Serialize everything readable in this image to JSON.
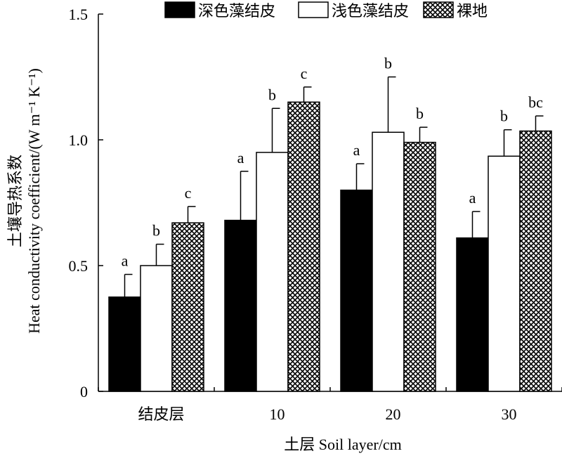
{
  "chart_data": {
    "type": "bar",
    "xlabel": "土层 Soil layer/cm",
    "ylabel_line1": "土壤导热系数",
    "ylabel_line2": "Heat conductivity coefficient/(W m⁻¹ K⁻¹)",
    "ylim": [
      0,
      1.5
    ],
    "yticks": [
      "0",
      "0.5",
      "1.0",
      "1.5"
    ],
    "ytick_values": [
      0,
      0.5,
      1.0,
      1.5
    ],
    "categories": [
      "结皮层",
      "10",
      "20",
      "30"
    ],
    "legend_position": "top",
    "grid": false,
    "series": [
      {
        "name": "深色藻结皮",
        "pattern": "solid-black",
        "values": [
          0.375,
          0.68,
          0.8,
          0.61
        ],
        "errors": [
          0.09,
          0.195,
          0.105,
          0.105
        ],
        "labels": [
          "a",
          "a",
          "a",
          "a"
        ]
      },
      {
        "name": "浅色藻结皮",
        "pattern": "white",
        "values": [
          0.5,
          0.95,
          1.03,
          0.935
        ],
        "errors": [
          0.085,
          0.175,
          0.22,
          0.105
        ],
        "labels": [
          "b",
          "b",
          "b",
          "b"
        ]
      },
      {
        "name": "裸地",
        "pattern": "crosshatch",
        "values": [
          0.67,
          1.15,
          0.99,
          1.035
        ],
        "errors": [
          0.065,
          0.06,
          0.06,
          0.06
        ],
        "labels": [
          "c",
          "c",
          "b",
          "bc"
        ]
      }
    ]
  }
}
